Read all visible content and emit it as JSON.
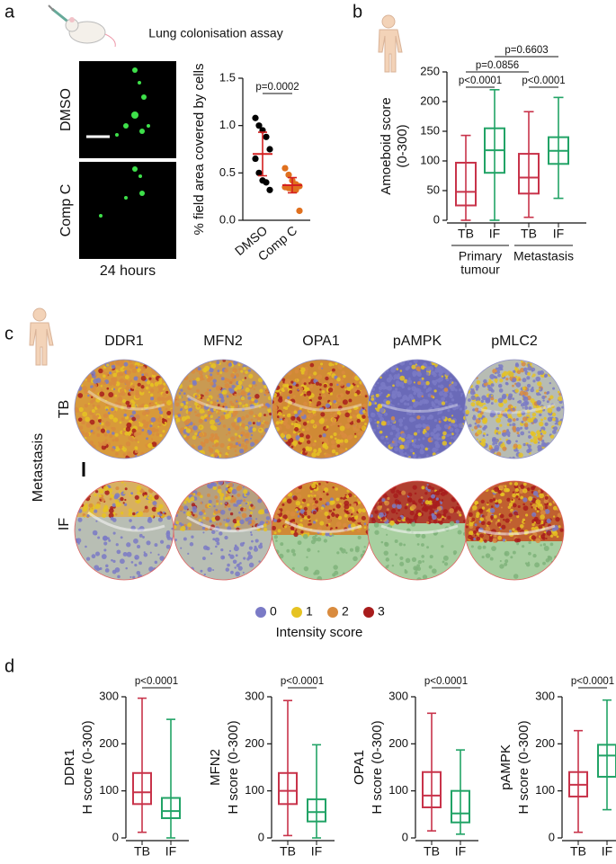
{
  "panel_labels": [
    "a",
    "b",
    "c",
    "d"
  ],
  "panel_a": {
    "title": "Lung colonisation assay",
    "images": [
      "DMSO",
      "Comp C"
    ],
    "time": "24 hours"
  },
  "panel_c": {
    "columns": [
      "DDR1",
      "MFN2",
      "OPA1",
      "pAMPK",
      "pMLC2"
    ],
    "rows": [
      "TB",
      "IF"
    ],
    "row_group": "Metastasis",
    "legend": {
      "title": "Intensity score",
      "items": [
        {
          "label": "0",
          "color": "#7a7ac6"
        },
        {
          "label": "1",
          "color": "#e6c322"
        },
        {
          "label": "2",
          "color": "#d98b3e"
        },
        {
          "label": "3",
          "color": "#a81c1c"
        }
      ]
    }
  },
  "chart_data": [
    {
      "type": "strip",
      "y_label": [
        "% field area covered by cells"
      ],
      "categories": [
        "DMSO",
        "Comp C"
      ],
      "ylim": [
        0,
        1.5
      ],
      "yticks": [
        {
          "value": 0,
          "label": "0.0"
        },
        0.5,
        {
          "value": 1,
          "label": "1.0"
        },
        1.5
      ],
      "series": [
        {
          "name": "DMSO",
          "color": "#000000",
          "values": [
            1.08,
            1.0,
            0.95,
            0.88,
            0.75,
            0.65,
            0.5,
            0.42,
            0.4,
            0.32
          ],
          "mean": 0.7,
          "sd": 0.23
        },
        {
          "name": "Comp C",
          "color": "#e0701e",
          "values": [
            0.55,
            0.48,
            0.42,
            0.38,
            0.36,
            0.35,
            0.34,
            0.33,
            0.32,
            0.1
          ],
          "mean": 0.37,
          "sd": 0.08
        }
      ],
      "error_color": "#d42020",
      "comparisons": [
        "p=0.0002"
      ]
    },
    {
      "type": "box",
      "y_label": [
        "Amoeboid score",
        "(0-300)"
      ],
      "categories": [
        "TB",
        "IF",
        "TB",
        "IF"
      ],
      "groups": [
        [
          "Primary",
          "tumour"
        ],
        [
          "Metastasis"
        ]
      ],
      "ylim": [
        0,
        250
      ],
      "yticks": [
        0,
        50,
        100,
        150,
        200,
        250
      ],
      "boxes": [
        {
          "color": "#c8334a",
          "min": 0,
          "q1": 25,
          "median": 48,
          "q3": 97,
          "max": 143
        },
        {
          "color": "#21a366",
          "min": 0,
          "q1": 80,
          "median": 118,
          "q3": 155,
          "max": 220
        },
        {
          "color": "#c8334a",
          "min": 5,
          "q1": 45,
          "median": 72,
          "q3": 112,
          "max": 183
        },
        {
          "color": "#21a366",
          "min": 37,
          "q1": 95,
          "median": 117,
          "q3": 140,
          "max": 207
        }
      ],
      "comparisons": [
        "p<0.0001",
        "p<0.0001",
        "p=0.0856",
        "p=0.6603"
      ]
    },
    {
      "type": "box",
      "y_label": [
        "DDR1",
        "H score (0-300)"
      ],
      "categories": [
        "TB",
        "IF"
      ],
      "ylim": [
        0,
        300
      ],
      "yticks": [
        0,
        100,
        200,
        300
      ],
      "boxes": [
        {
          "color": "#c8334a",
          "min": 12,
          "q1": 72,
          "median": 97,
          "q3": 138,
          "max": 297
        },
        {
          "color": "#21a366",
          "min": 0,
          "q1": 42,
          "median": 57,
          "q3": 85,
          "max": 252
        }
      ],
      "comparisons": [
        "p<0.0001"
      ]
    },
    {
      "type": "box",
      "y_label": [
        "MFN2",
        "H score (0-300)"
      ],
      "categories": [
        "TB",
        "IF"
      ],
      "ylim": [
        0,
        300
      ],
      "yticks": [
        0,
        100,
        200,
        300
      ],
      "boxes": [
        {
          "color": "#c8334a",
          "min": 5,
          "q1": 72,
          "median": 100,
          "q3": 138,
          "max": 292
        },
        {
          "color": "#21a366",
          "min": 0,
          "q1": 35,
          "median": 55,
          "q3": 82,
          "max": 198
        }
      ],
      "comparisons": [
        "p<0.0001"
      ]
    },
    {
      "type": "box",
      "y_label": [
        "OPA1",
        "H score (0-300)"
      ],
      "categories": [
        "TB",
        "IF"
      ],
      "ylim": [
        0,
        300
      ],
      "yticks": [
        0,
        100,
        200,
        300
      ],
      "boxes": [
        {
          "color": "#c8334a",
          "min": 15,
          "q1": 65,
          "median": 90,
          "q3": 140,
          "max": 265
        },
        {
          "color": "#21a366",
          "min": 8,
          "q1": 33,
          "median": 52,
          "q3": 100,
          "max": 187
        }
      ],
      "comparisons": [
        "p<0.0001"
      ]
    },
    {
      "type": "box",
      "y_label": [
        "pAMPK",
        "H score (0-300)"
      ],
      "categories": [
        "TB",
        "IF"
      ],
      "ylim": [
        0,
        300
      ],
      "yticks": [
        0,
        100,
        200,
        300
      ],
      "boxes": [
        {
          "color": "#c8334a",
          "min": 12,
          "q1": 88,
          "median": 113,
          "q3": 140,
          "max": 228
        },
        {
          "color": "#21a366",
          "min": 60,
          "q1": 130,
          "median": 175,
          "q3": 198,
          "max": 293
        }
      ],
      "comparisons": [
        "p<0.0001"
      ]
    }
  ]
}
